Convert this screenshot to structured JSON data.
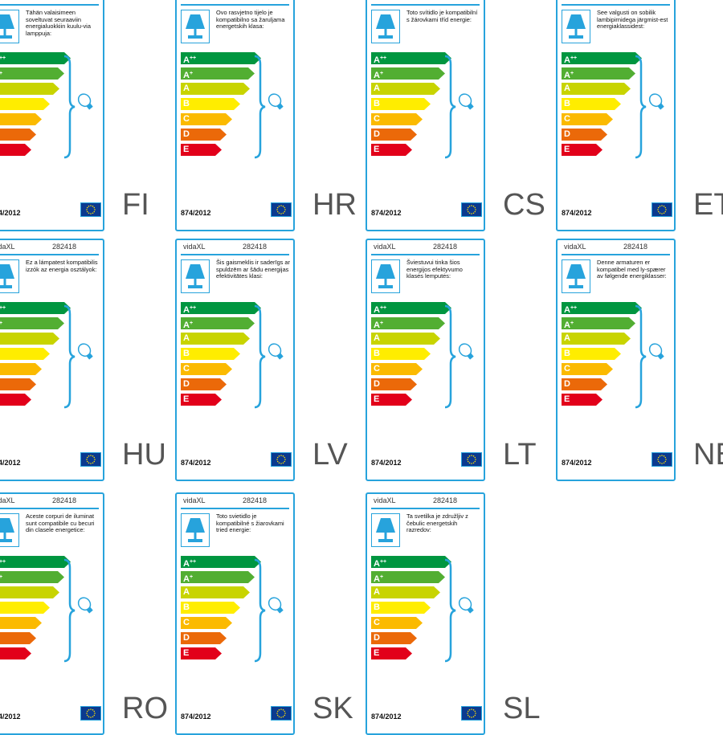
{
  "brand": "vidaXL",
  "product_code": "282418",
  "regulation": "874/2012",
  "energy_classes": [
    {
      "main": "A",
      "sup": "++",
      "color": "#009640"
    },
    {
      "main": "A",
      "sup": "+",
      "color": "#52ae32"
    },
    {
      "main": "A",
      "sup": "",
      "color": "#c8d400"
    },
    {
      "main": "B",
      "sup": "",
      "color": "#ffed00"
    },
    {
      "main": "C",
      "sup": "",
      "color": "#fbba00"
    },
    {
      "main": "D",
      "sup": "",
      "color": "#eb6909"
    },
    {
      "main": "E",
      "sup": "",
      "color": "#e2001a"
    }
  ],
  "colors": {
    "frame": "#27a3dc",
    "language_code": "#555555"
  },
  "labels": [
    {
      "lang": "FI",
      "text": "Tähän valaisimeen soveltuvat seuraaviin energialuokkiin kuulu-via lamppuja:"
    },
    {
      "lang": "HR",
      "text": "Ovo rasvjetno tijelo je kompatibilno sa žaruljama energetskih klasa:"
    },
    {
      "lang": "CS",
      "text": "Toto svítidlo je kompatibilní s žárovkami tříd energie:"
    },
    {
      "lang": "ET",
      "text": "See valgusti on sobilik lambipirnidega järgmist-est energiaklassidest:"
    },
    {
      "lang": "HU",
      "text": "Ez a lámpatest kompatibilis izzók az energia osztályok:"
    },
    {
      "lang": "LV",
      "text": "Šis gaismeklis ir saderīgs ar spuldzēm ar šādu energijas efektivitātes klasi:"
    },
    {
      "lang": "LT",
      "text": "Šviestuvui tinka šios energijos efektyvumo klasės lemputės:"
    },
    {
      "lang": "NB",
      "text": "Denne armaturen er kompatibel med ly-spærer av følgende energiklasser:"
    },
    {
      "lang": "RO",
      "text": "Aceste corpuri de iluminat sunt compatibile cu becuri din clasele energetice:"
    },
    {
      "lang": "SK",
      "text": "Toto svietidlo je kompatibilné s žiarovkami tried energie:"
    },
    {
      "lang": "SL",
      "text": "Ta svetilka je združljiv z čebulic energetskih razredov:"
    }
  ]
}
